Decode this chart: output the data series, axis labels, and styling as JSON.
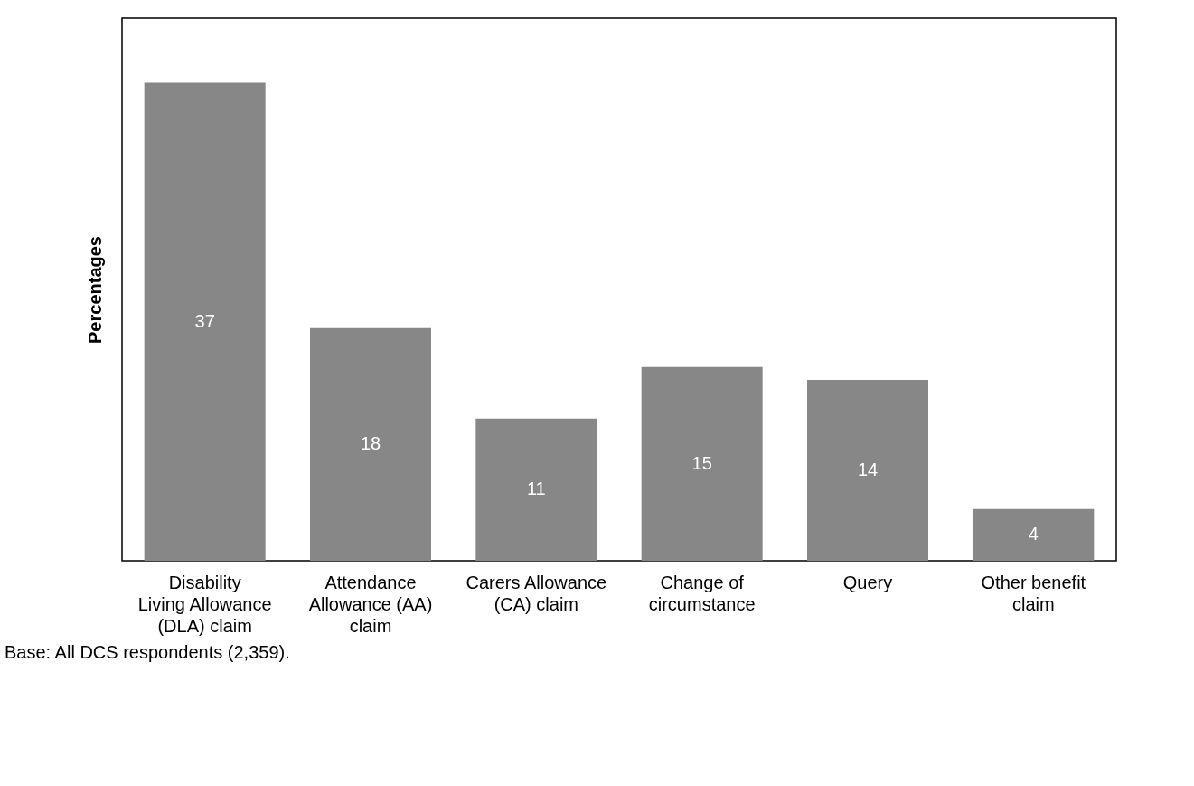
{
  "chart_data": {
    "type": "bar",
    "ylabel": "Percentages",
    "categories": [
      "Disability Living Allowance (DLA) claim",
      "Attendance Allowance (AA) claim",
      "Carers Allowance (CA) claim",
      "Change of circumstance",
      "Query",
      "Other benefit claim"
    ],
    "values": [
      37,
      18,
      11,
      15,
      14,
      4
    ],
    "color": "#878787",
    "data_labels": true,
    "ylim": [
      0,
      42
    ],
    "annotations": [
      "Base: All DCS respondents (2,359)."
    ]
  }
}
